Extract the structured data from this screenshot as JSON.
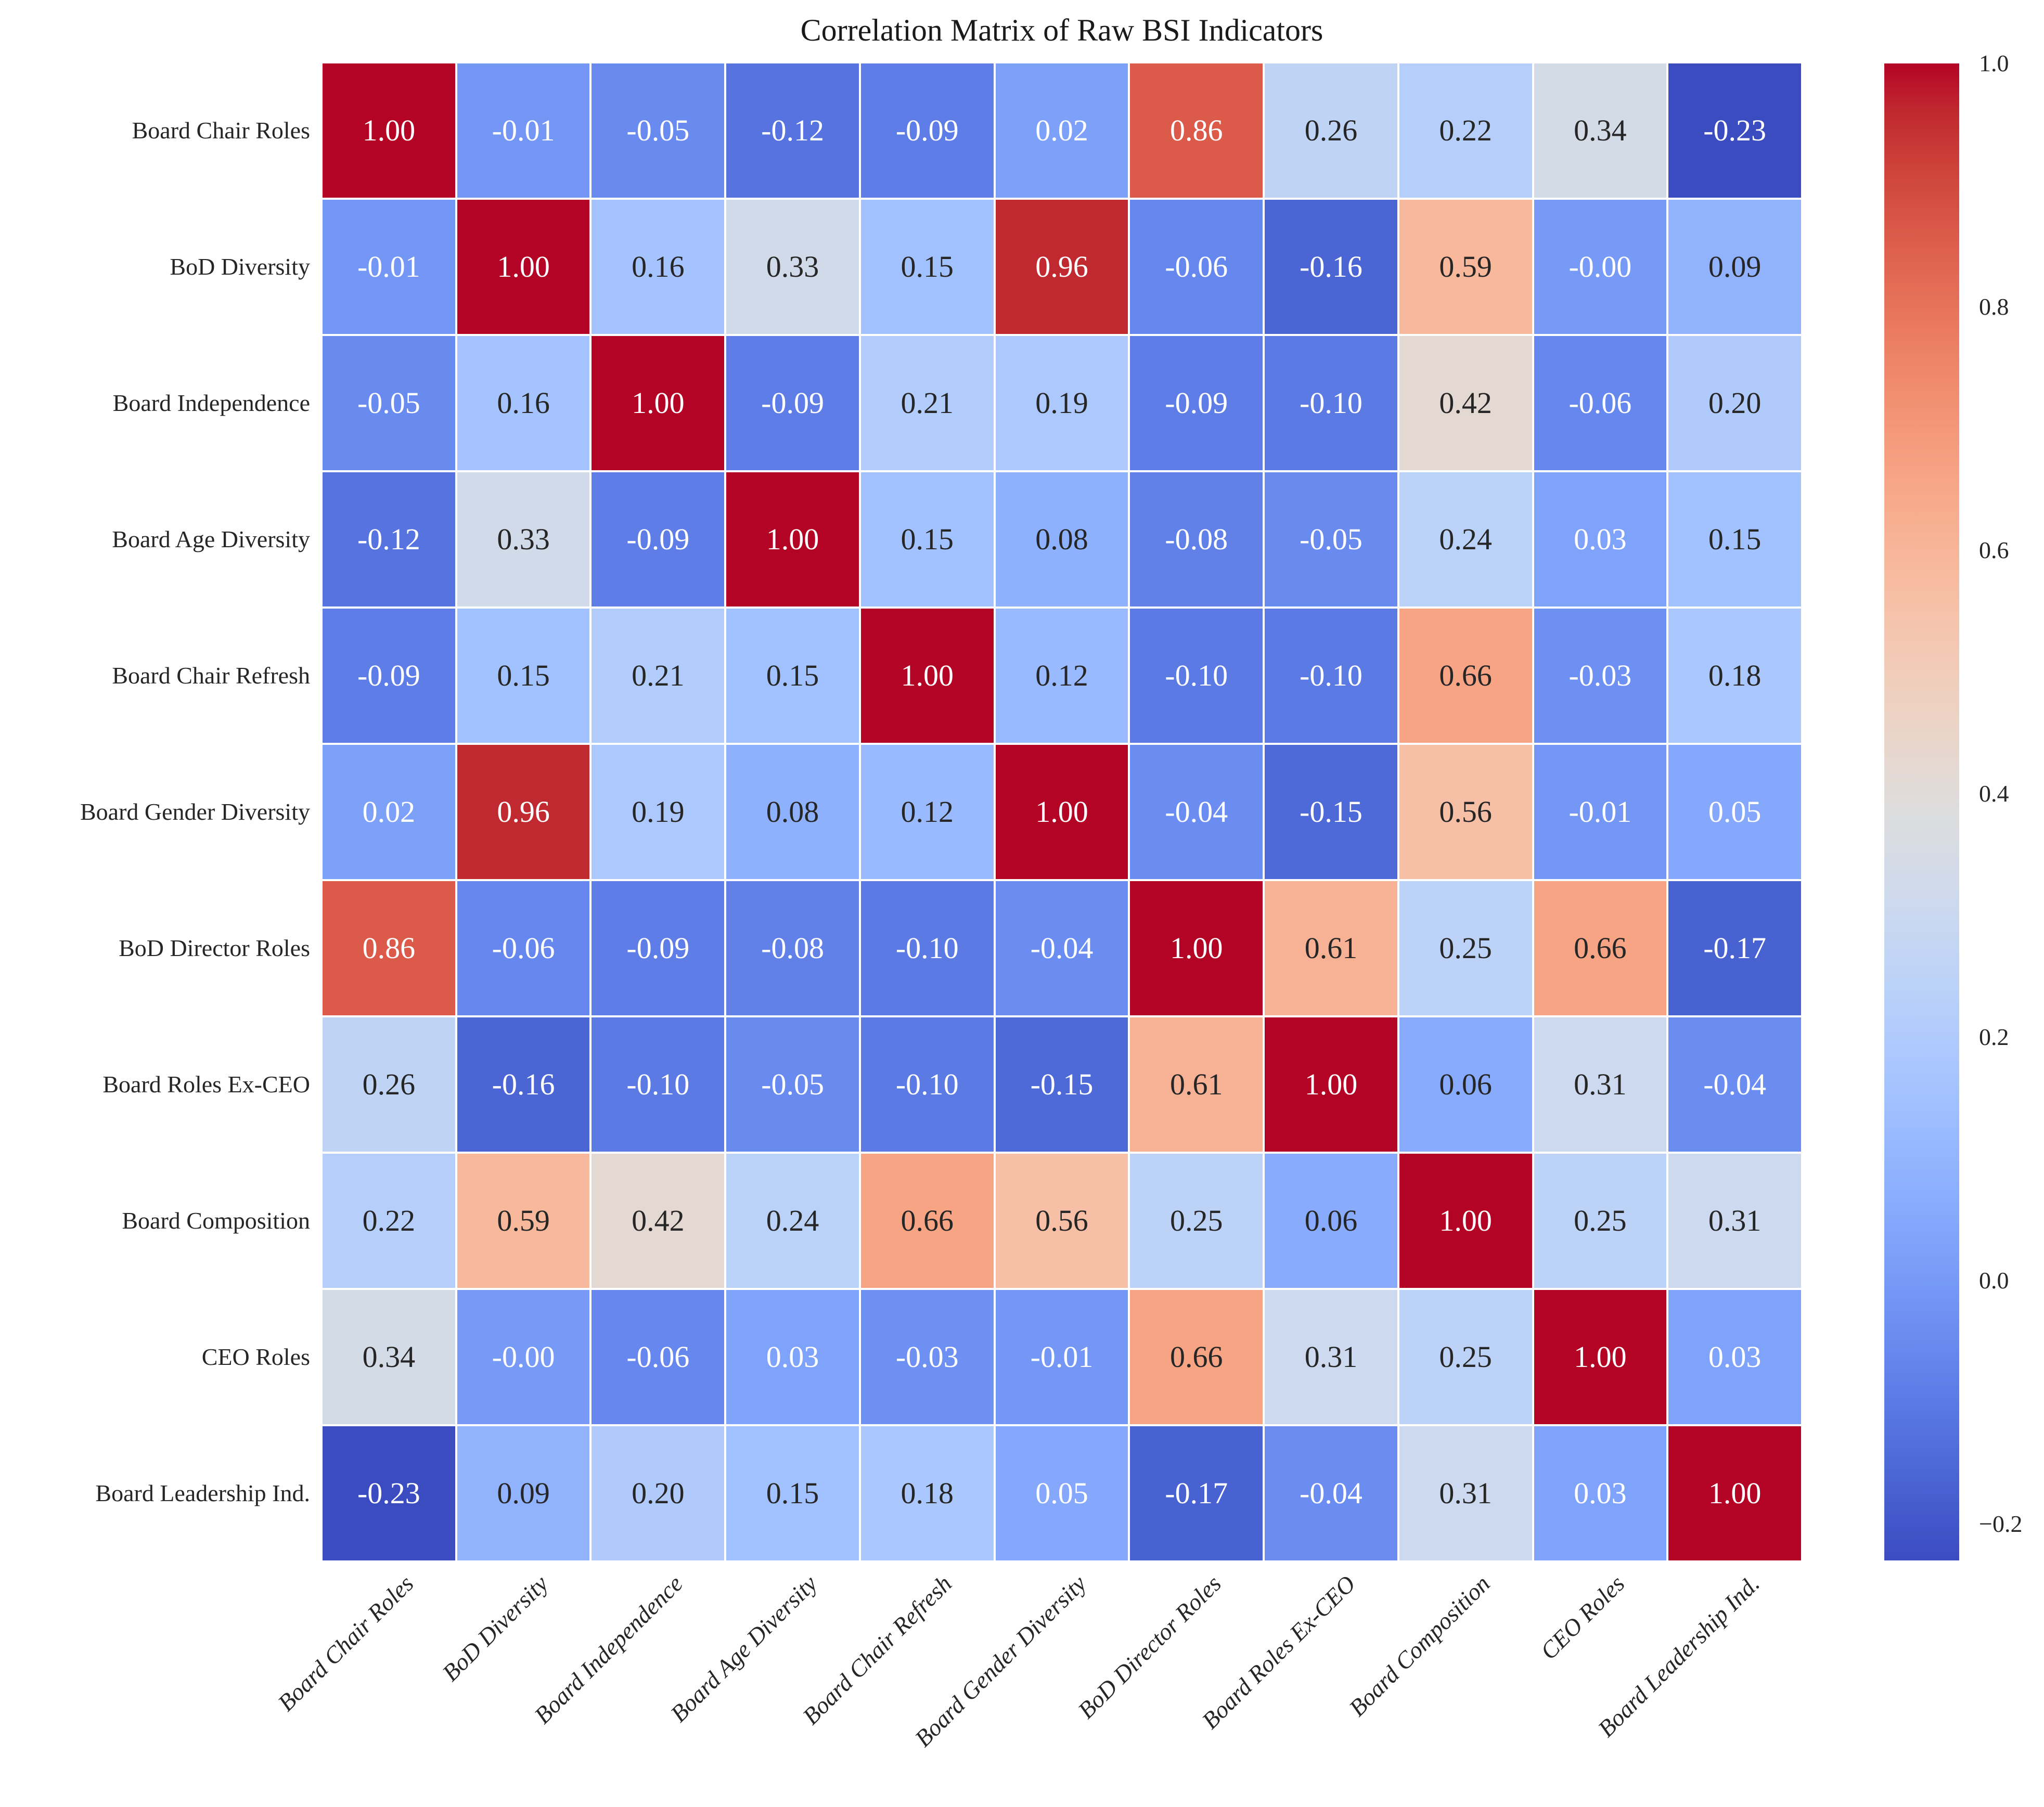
{
  "chart_data": {
    "type": "heatmap",
    "title": "Correlation Matrix of Raw BSI Indicators",
    "labels": [
      "Board Chair Roles",
      "BoD Diversity",
      "Board Independence",
      "Board Age Diversity",
      "Board Chair Refresh",
      "Board Gender Diversity",
      "BoD Director Roles",
      "Board Roles Ex-CEO",
      "Board Composition",
      "CEO Roles",
      "Board Leadership Ind."
    ],
    "matrix": [
      [
        "1.00",
        "-0.01",
        "-0.05",
        "-0.12",
        "-0.09",
        "0.02",
        "0.86",
        "0.26",
        "0.22",
        "0.34",
        "-0.23"
      ],
      [
        "-0.01",
        "1.00",
        "0.16",
        "0.33",
        "0.15",
        "0.96",
        "-0.06",
        "-0.16",
        "0.59",
        "-0.00",
        "0.09"
      ],
      [
        "-0.05",
        "0.16",
        "1.00",
        "-0.09",
        "0.21",
        "0.19",
        "-0.09",
        "-0.10",
        "0.42",
        "-0.06",
        "0.20"
      ],
      [
        "-0.12",
        "0.33",
        "-0.09",
        "1.00",
        "0.15",
        "0.08",
        "-0.08",
        "-0.05",
        "0.24",
        "0.03",
        "0.15"
      ],
      [
        "-0.09",
        "0.15",
        "0.21",
        "0.15",
        "1.00",
        "0.12",
        "-0.10",
        "-0.10",
        "0.66",
        "-0.03",
        "0.18"
      ],
      [
        "0.02",
        "0.96",
        "0.19",
        "0.08",
        "0.12",
        "1.00",
        "-0.04",
        "-0.15",
        "0.56",
        "-0.01",
        "0.05"
      ],
      [
        "0.86",
        "-0.06",
        "-0.09",
        "-0.08",
        "-0.10",
        "-0.04",
        "1.00",
        "0.61",
        "0.25",
        "0.66",
        "-0.17"
      ],
      [
        "0.26",
        "-0.16",
        "-0.10",
        "-0.05",
        "-0.10",
        "-0.15",
        "0.61",
        "1.00",
        "0.06",
        "0.31",
        "-0.04"
      ],
      [
        "0.22",
        "0.59",
        "0.42",
        "0.24",
        "0.66",
        "0.56",
        "0.25",
        "0.06",
        "1.00",
        "0.25",
        "0.31"
      ],
      [
        "0.34",
        "-0.00",
        "-0.06",
        "0.03",
        "-0.03",
        "-0.01",
        "0.66",
        "0.31",
        "0.25",
        "1.00",
        "0.03"
      ],
      [
        "-0.23",
        "0.09",
        "0.20",
        "0.15",
        "0.18",
        "0.05",
        "-0.17",
        "-0.04",
        "0.31",
        "0.03",
        "1.00"
      ]
    ],
    "color_scale": {
      "colormap": "coolwarm",
      "vmin": -0.23,
      "vmax": 1.0,
      "color_min": "#3b4cc0",
      "color_mid": "#dddddd",
      "color_max": "#b40426",
      "grid_line_color": "#ffffff"
    },
    "colorbar": {
      "position": "right",
      "tick_labels": [
        "1.0",
        "0.8",
        "0.6",
        "0.4",
        "0.2",
        "0.0",
        "−0.2"
      ],
      "tick_values": [
        1.0,
        0.8,
        0.6,
        0.4,
        0.2,
        0.0,
        -0.2
      ]
    },
    "annotation_format": ".2f",
    "x_tick_rotation_deg": 45
  }
}
